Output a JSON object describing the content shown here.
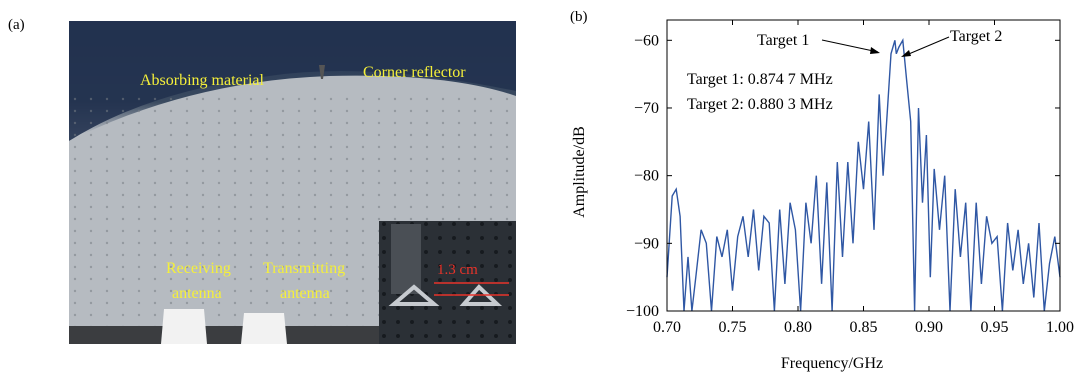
{
  "panels": {
    "a": "(a)",
    "b": "(b)"
  },
  "photo": {
    "absorbing_material": "Absorbing material",
    "corner_reflector": "Corner reflector",
    "receiving_antenna": [
      "Receiving",
      "antenna"
    ],
    "transmitting_antenna": [
      "Transmitting",
      "antenna"
    ],
    "scale_bar": "1.3 cm"
  },
  "colors": {
    "line": "#2f57a4",
    "photo_label": "#f5f03a",
    "scale_bar": "#e8332a"
  },
  "chart_data": {
    "type": "line",
    "xlabel": "Frequency/GHz",
    "ylabel": "Amplitude/dB",
    "xlim": [
      0.7,
      1.0
    ],
    "ylim": [
      -100,
      -57
    ],
    "xticks": [
      0.7,
      0.75,
      0.8,
      0.85,
      0.9,
      0.95,
      1.0
    ],
    "xtick_labels": [
      "0.70",
      "0.75",
      "0.80",
      "0.85",
      "0.90",
      "0.95",
      "1.00"
    ],
    "yticks": [
      -60,
      -70,
      -80,
      -90,
      -100
    ],
    "ytick_labels": [
      "−60",
      "−70",
      "−80",
      "−90",
      "−100"
    ],
    "grid": false,
    "annotations": {
      "target1": "Target 1",
      "target2": "Target 2",
      "target1_info": "Target 1: 0.874 7 MHz",
      "target2_info": "Target 2: 0.880 3 MHz"
    },
    "series": [
      {
        "x": [
          0.7,
          0.704,
          0.707,
          0.71,
          0.713,
          0.716,
          0.719,
          0.722,
          0.726,
          0.73,
          0.734,
          0.738,
          0.742,
          0.746,
          0.75,
          0.754,
          0.758,
          0.762,
          0.766,
          0.77,
          0.774,
          0.778,
          0.782,
          0.786,
          0.79,
          0.794,
          0.798,
          0.802,
          0.806,
          0.81,
          0.814,
          0.818,
          0.822,
          0.826,
          0.83,
          0.834,
          0.838,
          0.842,
          0.846,
          0.85,
          0.854,
          0.858,
          0.862,
          0.865,
          0.868,
          0.871,
          0.874,
          0.875,
          0.877,
          0.88,
          0.881,
          0.883,
          0.886,
          0.889,
          0.892,
          0.895,
          0.898,
          0.901,
          0.904,
          0.908,
          0.912,
          0.916,
          0.92,
          0.924,
          0.928,
          0.932,
          0.936,
          0.94,
          0.944,
          0.948,
          0.952,
          0.956,
          0.96,
          0.964,
          0.968,
          0.972,
          0.976,
          0.98,
          0.984,
          0.988,
          0.992,
          0.996,
          1.0
        ],
        "y": [
          -95,
          -83,
          -82,
          -86,
          -100,
          -92,
          -100,
          -95,
          -88,
          -90,
          -100,
          -89,
          -92,
          -88,
          -97,
          -89,
          -86,
          -92,
          -85,
          -94,
          -86,
          -87,
          -100,
          -85,
          -96,
          -84,
          -88,
          -100,
          -84,
          -90,
          -80,
          -96,
          -81,
          -100,
          -78,
          -92,
          -78,
          -90,
          -75,
          -82,
          -72,
          -88,
          -68,
          -80,
          -71,
          -62,
          -60,
          -62,
          -61,
          -60,
          -62,
          -66,
          -72,
          -100,
          -70,
          -84,
          -74,
          -95,
          -79,
          -88,
          -80,
          -100,
          -82,
          -92,
          -84,
          -100,
          -84,
          -96,
          -86,
          -90,
          -89,
          -100,
          -87,
          -94,
          -88,
          -96,
          -90,
          -98,
          -87,
          -100,
          -93,
          -89,
          -95
        ]
      }
    ]
  }
}
